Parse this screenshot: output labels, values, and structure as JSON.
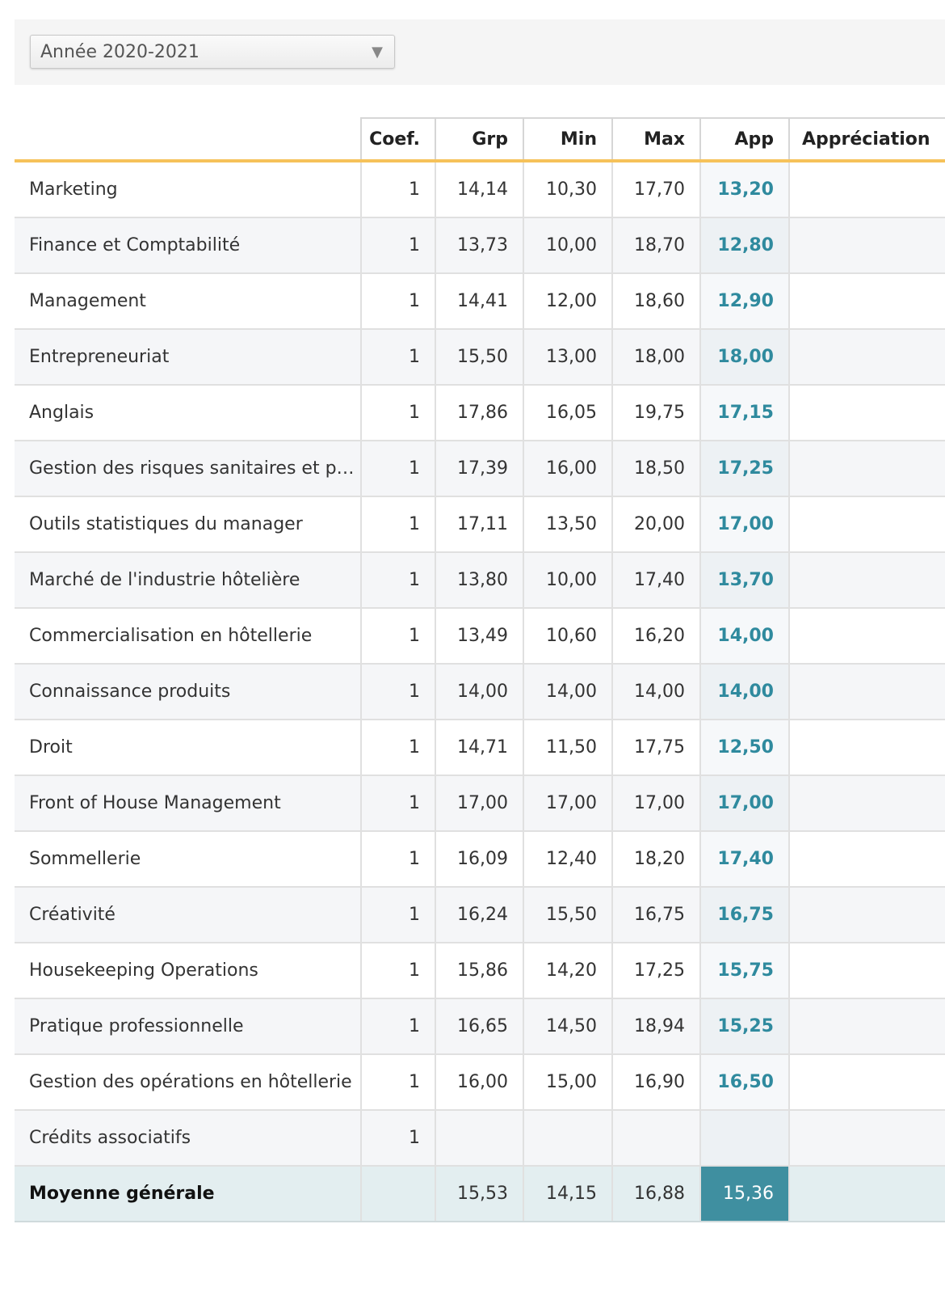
{
  "select": {
    "label": "Année 2020-2021"
  },
  "table": {
    "columns": [
      "Coef.",
      "Grp",
      "Min",
      "Max",
      "App",
      "Appréciation"
    ],
    "rows": [
      {
        "label": "Marketing",
        "coef": "1",
        "grp": "14,14",
        "min": "10,30",
        "max": "17,70",
        "app": "13,20"
      },
      {
        "label": "Finance et Comptabilité",
        "coef": "1",
        "grp": "13,73",
        "min": "10,00",
        "max": "18,70",
        "app": "12,80"
      },
      {
        "label": "Management",
        "coef": "1",
        "grp": "14,41",
        "min": "12,00",
        "max": "18,60",
        "app": "12,90"
      },
      {
        "label": "Entrepreneuriat",
        "coef": "1",
        "grp": "15,50",
        "min": "13,00",
        "max": "18,00",
        "app": "18,00"
      },
      {
        "label": "Anglais",
        "coef": "1",
        "grp": "17,86",
        "min": "16,05",
        "max": "19,75",
        "app": "17,15"
      },
      {
        "label": "Gestion des risques sanitaires et p…",
        "coef": "1",
        "grp": "17,39",
        "min": "16,00",
        "max": "18,50",
        "app": "17,25"
      },
      {
        "label": "Outils statistiques du manager",
        "coef": "1",
        "grp": "17,11",
        "min": "13,50",
        "max": "20,00",
        "app": "17,00"
      },
      {
        "label": "Marché de l'industrie hôtelière",
        "coef": "1",
        "grp": "13,80",
        "min": "10,00",
        "max": "17,40",
        "app": "13,70"
      },
      {
        "label": "Commercialisation en hôtellerie",
        "coef": "1",
        "grp": "13,49",
        "min": "10,60",
        "max": "16,20",
        "app": "14,00"
      },
      {
        "label": "Connaissance produits",
        "coef": "1",
        "grp": "14,00",
        "min": "14,00",
        "max": "14,00",
        "app": "14,00"
      },
      {
        "label": "Droit",
        "coef": "1",
        "grp": "14,71",
        "min": "11,50",
        "max": "17,75",
        "app": "12,50"
      },
      {
        "label": "Front of House Management",
        "coef": "1",
        "grp": "17,00",
        "min": "17,00",
        "max": "17,00",
        "app": "17,00"
      },
      {
        "label": "Sommellerie",
        "coef": "1",
        "grp": "16,09",
        "min": "12,40",
        "max": "18,20",
        "app": "17,40"
      },
      {
        "label": "Créativité",
        "coef": "1",
        "grp": "16,24",
        "min": "15,50",
        "max": "16,75",
        "app": "16,75"
      },
      {
        "label": "Housekeeping Operations",
        "coef": "1",
        "grp": "15,86",
        "min": "14,20",
        "max": "17,25",
        "app": "15,75"
      },
      {
        "label": "Pratique professionnelle",
        "coef": "1",
        "grp": "16,65",
        "min": "14,50",
        "max": "18,94",
        "app": "15,25"
      },
      {
        "label": "Gestion des opérations en hôtellerie",
        "coef": "1",
        "grp": "16,00",
        "min": "15,00",
        "max": "16,90",
        "app": "16,50"
      },
      {
        "label": "Crédits associatifs",
        "coef": "1",
        "grp": null,
        "min": null,
        "max": null,
        "app": null
      }
    ],
    "total": {
      "label": "Moyenne générale",
      "grp": "15,53",
      "min": "14,15",
      "max": "16,88",
      "app": "15,36"
    }
  }
}
